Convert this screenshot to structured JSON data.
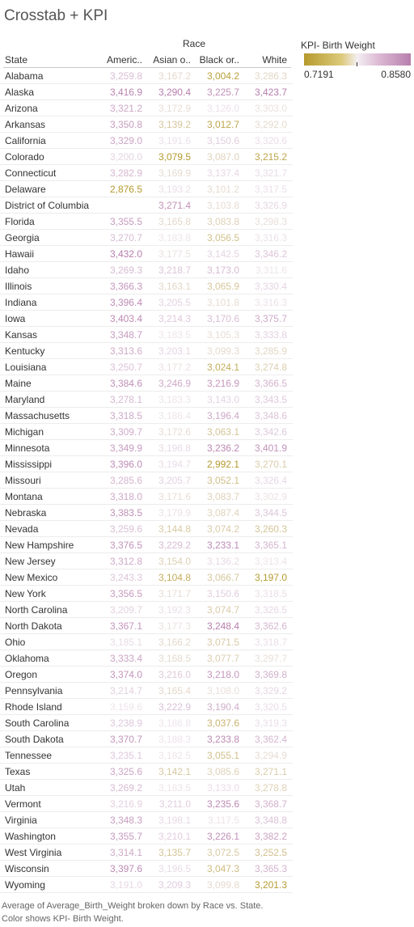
{
  "title": "Crosstab + KPI",
  "chart_data": {
    "type": "table",
    "column_group_label": "Race",
    "row_header": "State",
    "columns": [
      "Americ..",
      "Asian o..",
      "Black or..",
      "White"
    ],
    "legend": {
      "title": "KPI- Birth Weight",
      "min_label": "0.7191",
      "max_label": "0.8580",
      "colors": {
        "low": "#b59a2e",
        "mid": "#f3eef2",
        "high": "#b77fad"
      }
    },
    "rows": [
      {
        "state": "Alabama",
        "values": [
          "3,259.8",
          "3,167.2",
          "3,004.2",
          "3,286.3"
        ]
      },
      {
        "state": "Alaska",
        "values": [
          "3,416.9",
          "3,290.4",
          "3,225.7",
          "3,423.7"
        ]
      },
      {
        "state": "Arizona",
        "values": [
          "3,321.2",
          "3,172.9",
          "3,126.0",
          "3,303.0"
        ]
      },
      {
        "state": "Arkansas",
        "values": [
          "3,350.8",
          "3,139.2",
          "3,012.7",
          "3,292.0"
        ]
      },
      {
        "state": "California",
        "values": [
          "3,329.0",
          "3,191.6",
          "3,150.6",
          "3,320.6"
        ]
      },
      {
        "state": "Colorado",
        "values": [
          "3,200.0",
          "3,079.5",
          "3,087.0",
          "3,215.2"
        ]
      },
      {
        "state": "Connecticut",
        "values": [
          "3,282.9",
          "3,169.9",
          "3,137.4",
          "3,321.7"
        ]
      },
      {
        "state": "Delaware",
        "values": [
          "2,876.5",
          "3,193.2",
          "3,101.2",
          "3,317.5"
        ]
      },
      {
        "state": "District of Columbia",
        "values": [
          "",
          "3,271.4",
          "3,103.8",
          "3,326.9"
        ]
      },
      {
        "state": "Florida",
        "values": [
          "3,355.5",
          "3,165.8",
          "3,083.8",
          "3,298.3"
        ]
      },
      {
        "state": "Georgia",
        "values": [
          "3,270.7",
          "3,183.8",
          "3,056.5",
          "3,316.3"
        ]
      },
      {
        "state": "Hawaii",
        "values": [
          "3,432.0",
          "3,177.5",
          "3,142.5",
          "3,346.2"
        ]
      },
      {
        "state": "Idaho",
        "values": [
          "3,269.3",
          "3,218.7",
          "3,173.0",
          "3,311.6"
        ]
      },
      {
        "state": "Illinois",
        "values": [
          "3,366.3",
          "3,163.1",
          "3,065.9",
          "3,330.4"
        ]
      },
      {
        "state": "Indiana",
        "values": [
          "3,396.4",
          "3,205.5",
          "3,101.8",
          "3,316.3"
        ]
      },
      {
        "state": "Iowa",
        "values": [
          "3,403.4",
          "3,214.3",
          "3,170.6",
          "3,375.7"
        ]
      },
      {
        "state": "Kansas",
        "values": [
          "3,348.7",
          "3,183.5",
          "3,105.3",
          "3,333.8"
        ]
      },
      {
        "state": "Kentucky",
        "values": [
          "3,313.6",
          "3,203.1",
          "3,099.3",
          "3,285.9"
        ]
      },
      {
        "state": "Louisiana",
        "values": [
          "3,250.7",
          "3,177.2",
          "3,024.1",
          "3,274.8"
        ]
      },
      {
        "state": "Maine",
        "values": [
          "3,384.6",
          "3,246.9",
          "3,216.9",
          "3,366.5"
        ]
      },
      {
        "state": "Maryland",
        "values": [
          "3,278.1",
          "3,183.3",
          "3,143.0",
          "3,343.5"
        ]
      },
      {
        "state": "Massachusetts",
        "values": [
          "3,318.5",
          "3,186.4",
          "3,196.4",
          "3,348.6"
        ]
      },
      {
        "state": "Michigan",
        "values": [
          "3,309.7",
          "3,172.6",
          "3,063.1",
          "3,342.6"
        ]
      },
      {
        "state": "Minnesota",
        "values": [
          "3,349.9",
          "3,196.8",
          "3,236.2",
          "3,401.9"
        ]
      },
      {
        "state": "Mississippi",
        "values": [
          "3,396.0",
          "3,194.7",
          "2,992.1",
          "3,270.1"
        ]
      },
      {
        "state": "Missouri",
        "values": [
          "3,285.6",
          "3,205.7",
          "3,052.1",
          "3,326.4"
        ]
      },
      {
        "state": "Montana",
        "values": [
          "3,318.0",
          "3,171.6",
          "3,083.7",
          "3,302.9"
        ]
      },
      {
        "state": "Nebraska",
        "values": [
          "3,383.5",
          "3,179.9",
          "3,087.4",
          "3,344.5"
        ]
      },
      {
        "state": "Nevada",
        "values": [
          "3,259.6",
          "3,144.8",
          "3,074.2",
          "3,260.3"
        ]
      },
      {
        "state": "New Hampshire",
        "values": [
          "3,376.5",
          "3,229.2",
          "3,233.1",
          "3,365.1"
        ]
      },
      {
        "state": "New Jersey",
        "values": [
          "3,312.8",
          "3,154.0",
          "3,136.2",
          "3,313.4"
        ]
      },
      {
        "state": "New Mexico",
        "values": [
          "3,243.3",
          "3,104.8",
          "3,066.7",
          "3,197.0"
        ]
      },
      {
        "state": "New York",
        "values": [
          "3,356.5",
          "3,171.7",
          "3,150.6",
          "3,318.5"
        ]
      },
      {
        "state": "North Carolina",
        "values": [
          "3,209.7",
          "3,192.3",
          "3,074.7",
          "3,326.5"
        ]
      },
      {
        "state": "North Dakota",
        "values": [
          "3,367.1",
          "3,177.3",
          "3,248.4",
          "3,362.6"
        ]
      },
      {
        "state": "Ohio",
        "values": [
          "3,185.1",
          "3,166.2",
          "3,071.5",
          "3,318.7"
        ]
      },
      {
        "state": "Oklahoma",
        "values": [
          "3,333.4",
          "3,168.5",
          "3,077.7",
          "3,297.7"
        ]
      },
      {
        "state": "Oregon",
        "values": [
          "3,374.0",
          "3,216.0",
          "3,218.0",
          "3,369.8"
        ]
      },
      {
        "state": "Pennsylvania",
        "values": [
          "3,214.7",
          "3,165.4",
          "3,108.0",
          "3,329.2"
        ]
      },
      {
        "state": "Rhode Island",
        "values": [
          "3,159.6",
          "3,222.9",
          "3,190.4",
          "3,320.5"
        ]
      },
      {
        "state": "South Carolina",
        "values": [
          "3,238.9",
          "3,186.8",
          "3,037.6",
          "3,319.3"
        ]
      },
      {
        "state": "South Dakota",
        "values": [
          "3,370.7",
          "3,188.3",
          "3,233.8",
          "3,362.4"
        ]
      },
      {
        "state": "Tennessee",
        "values": [
          "3,235.1",
          "3,182.5",
          "3,055.1",
          "3,294.9"
        ]
      },
      {
        "state": "Texas",
        "values": [
          "3,325.6",
          "3,142.1",
          "3,085.6",
          "3,271.1"
        ]
      },
      {
        "state": "Utah",
        "values": [
          "3,269.2",
          "3,183.5",
          "3,133.0",
          "3,278.8"
        ]
      },
      {
        "state": "Vermont",
        "values": [
          "3,216.9",
          "3,211.0",
          "3,235.6",
          "3,368.7"
        ]
      },
      {
        "state": "Virginia",
        "values": [
          "3,348.3",
          "3,198.1",
          "3,117.5",
          "3,348.8"
        ]
      },
      {
        "state": "Washington",
        "values": [
          "3,355.7",
          "3,210.1",
          "3,226.1",
          "3,382.2"
        ]
      },
      {
        "state": "West Virginia",
        "values": [
          "3,314.1",
          "3,135.7",
          "3,072.5",
          "3,252.5"
        ]
      },
      {
        "state": "Wisconsin",
        "values": [
          "3,397.6",
          "3,196.5",
          "3,047.3",
          "3,365.3"
        ]
      },
      {
        "state": "Wyoming",
        "values": [
          "3,191.0",
          "3,209.3",
          "3,099.8",
          "3,201.3"
        ]
      }
    ]
  },
  "caption": "Average of Average_Birth_Weight broken down by Race vs. State.  Color shows KPI- Birth Weight."
}
